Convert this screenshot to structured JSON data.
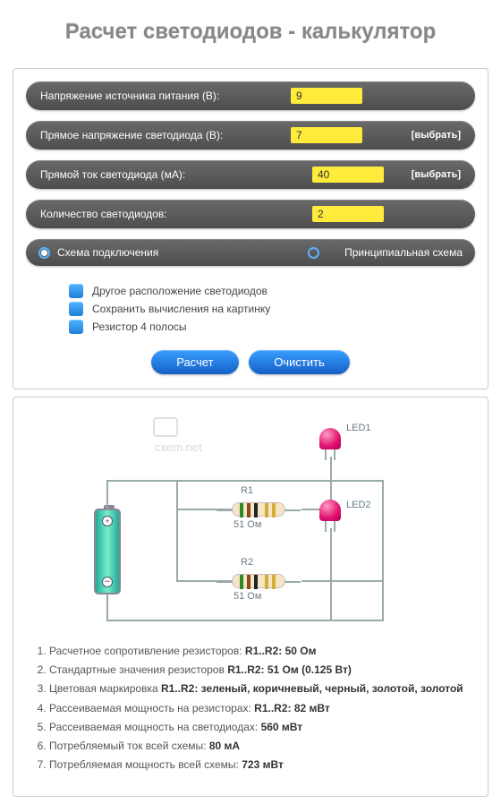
{
  "title": "Расчет светодиодов - калькулятор",
  "inputs": {
    "supply": {
      "label": "Напряжение источника питания (В):",
      "value": "9"
    },
    "vf": {
      "label": "Прямое напряжение светодиода (В):",
      "value": "7",
      "choose": "[выбрать]"
    },
    "current": {
      "label": "Прямой ток светодиода (мА):",
      "value": "40",
      "choose": "[выбрать]"
    },
    "count": {
      "label": "Количество светодиодов:",
      "value": "2"
    }
  },
  "scheme": {
    "opt1": "Схема подключения",
    "opt2": "Принципиальная схема"
  },
  "checks": {
    "c1": "Другое расположение светодиодов",
    "c2": "Сохранить вычисления на картинку",
    "c3": "Резистор 4 полосы"
  },
  "buttons": {
    "calc": "Расчет",
    "clear": "Очистить"
  },
  "diagram": {
    "watermark": "cxem.net",
    "r1": {
      "name": "R1",
      "value": "51 Ом"
    },
    "r2": {
      "name": "R2",
      "value": "51 Ом"
    },
    "led1": "LED1",
    "led2": "LED2",
    "bands": [
      "#2a8a2a",
      "#8a4a1a",
      "#222",
      "#d4af37",
      "#d4af37"
    ]
  },
  "results": [
    {
      "t": "Расчетное сопротивление резисторов: ",
      "b": "R1..R2: 50 Ом"
    },
    {
      "t": "Стандартные значения резисторов ",
      "b": "R1..R2: 51 Ом (0.125 Вт)"
    },
    {
      "t": "Цветовая маркировка ",
      "b": "R1..R2: зеленый, коричневый, черный, золотой, золотой"
    },
    {
      "t": "Рассеиваемая мощность на резисторах: ",
      "b": "R1..R2: 82 мВт"
    },
    {
      "t": "Рассеиваемая мощность на светодиодах: ",
      "b": "560 мВт"
    },
    {
      "t": "Потребляемый ток всей схемы: ",
      "b": "80 мА"
    },
    {
      "t": "Потребляемая мощность всей схемы: ",
      "b": "723 мВт"
    }
  ]
}
